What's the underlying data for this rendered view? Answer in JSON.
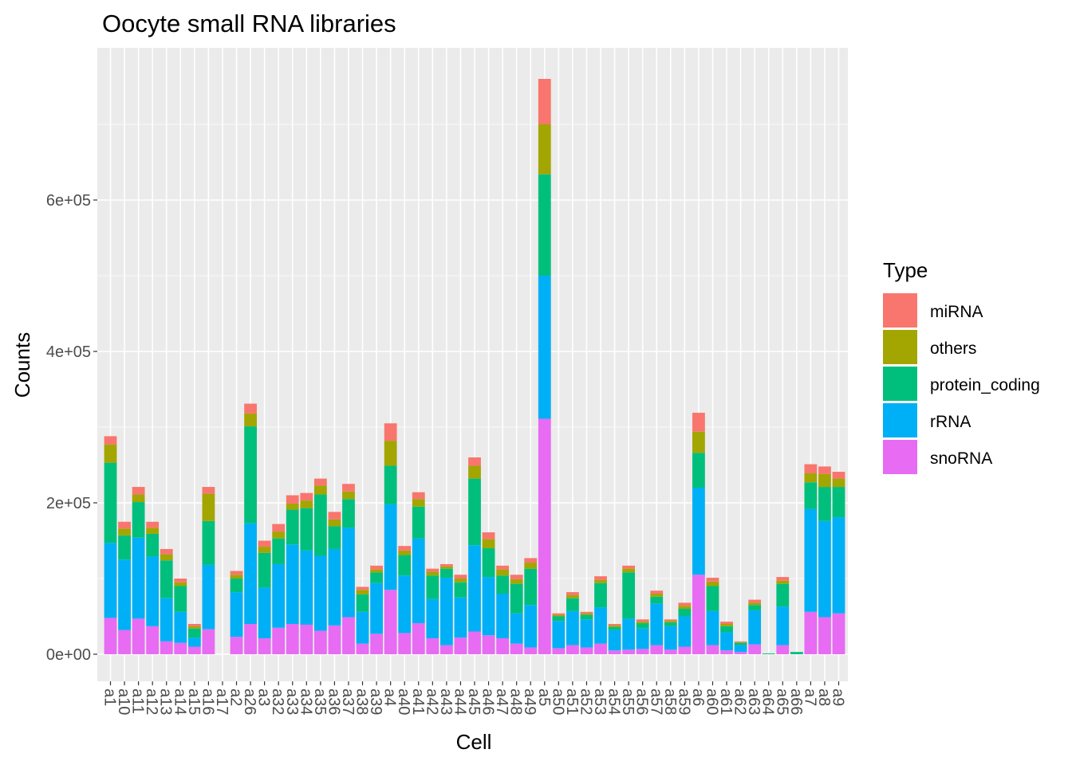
{
  "chart_data": {
    "type": "bar",
    "stacked": true,
    "title": "Oocyte small RNA libraries",
    "xlabel": "Cell",
    "ylabel": "Counts",
    "ylim": [
      0,
      760000
    ],
    "y_ticks": [
      0,
      200000,
      400000,
      600000
    ],
    "y_tick_labels": [
      "0e+00",
      "2e+05",
      "4e+05",
      "6e+05"
    ],
    "legend_title": "Type",
    "legend_position": "right",
    "grid": true,
    "categories": [
      "a1",
      "a10",
      "a11",
      "a12",
      "a13",
      "a14",
      "a15",
      "a16",
      "a17",
      "a2",
      "a26",
      "a3",
      "a32",
      "a33",
      "a34",
      "a35",
      "a36",
      "a37",
      "a38",
      "a39",
      "a4",
      "a40",
      "a41",
      "a42",
      "a43",
      "a44",
      "a45",
      "a46",
      "a47",
      "a48",
      "a49",
      "a5",
      "a50",
      "a51",
      "a52",
      "a53",
      "a54",
      "a55",
      "a56",
      "a57",
      "a58",
      "a59",
      "a6",
      "a60",
      "a61",
      "a62",
      "a63",
      "a64",
      "a65",
      "a66",
      "a7",
      "a8",
      "a9"
    ],
    "series": [
      {
        "name": "snoRNA",
        "color": "#E76BF3",
        "values": [
          48000,
          32000,
          47000,
          37000,
          17000,
          15000,
          10000,
          33000,
          0,
          23000,
          40000,
          21000,
          35000,
          40000,
          39000,
          31000,
          38000,
          49000,
          14000,
          27000,
          85000,
          28000,
          41000,
          21000,
          12000,
          22000,
          30000,
          25000,
          21000,
          14000,
          9000,
          311000,
          8000,
          12000,
          9000,
          14000,
          5000,
          6000,
          7000,
          12000,
          6000,
          10000,
          105000,
          12000,
          5000,
          3000,
          13000,
          0,
          12000,
          0,
          56000,
          49000,
          54000
        ]
      },
      {
        "name": "rRNA",
        "color": "#00B0F6",
        "values": [
          99000,
          93000,
          107000,
          92000,
          57000,
          41000,
          12000,
          85000,
          0,
          59000,
          133000,
          67000,
          84000,
          105000,
          98000,
          99000,
          101000,
          118000,
          42000,
          67000,
          113000,
          76000,
          112000,
          52000,
          89000,
          53000,
          114000,
          77000,
          59000,
          40000,
          56000,
          189000,
          36000,
          45000,
          37000,
          48000,
          27000,
          41000,
          27000,
          55000,
          31000,
          40000,
          115000,
          45000,
          24000,
          9000,
          45000,
          0,
          51000,
          0,
          136000,
          127000,
          127000
        ]
      },
      {
        "name": "protein_coding",
        "color": "#00BF7D",
        "values": [
          106000,
          32000,
          47000,
          30000,
          50000,
          34000,
          12000,
          58000,
          0,
          18000,
          128000,
          46000,
          34000,
          46000,
          56000,
          81000,
          30000,
          38000,
          23000,
          14000,
          51000,
          27000,
          42000,
          31000,
          12000,
          20000,
          88000,
          38000,
          24000,
          39000,
          48000,
          134000,
          6000,
          17000,
          6000,
          32000,
          4000,
          61000,
          7000,
          9000,
          5000,
          10000,
          46000,
          33000,
          8000,
          3000,
          7000,
          1000,
          30000,
          3000,
          35000,
          45000,
          40000
        ]
      },
      {
        "name": "others",
        "color": "#A3A500",
        "values": [
          24000,
          9000,
          10000,
          8000,
          8000,
          5000,
          3000,
          36000,
          0,
          5000,
          17000,
          8000,
          9000,
          8000,
          10000,
          12000,
          9000,
          10000,
          6000,
          4000,
          33000,
          6000,
          10000,
          5000,
          3000,
          5000,
          17000,
          12000,
          8000,
          6000,
          8000,
          66000,
          2000,
          4000,
          2000,
          4000,
          2000,
          5000,
          2000,
          4000,
          2000,
          4000,
          28000,
          6000,
          3000,
          1000,
          3000,
          0,
          4000,
          0,
          12000,
          17000,
          11000
        ]
      },
      {
        "name": "miRNA",
        "color": "#F8766D",
        "values": [
          11000,
          9000,
          10000,
          8000,
          7000,
          5000,
          3000,
          9000,
          0,
          5000,
          13000,
          8000,
          10000,
          11000,
          10000,
          9000,
          10000,
          10000,
          4000,
          5000,
          23000,
          6000,
          9000,
          4000,
          3000,
          5000,
          11000,
          9000,
          5000,
          6000,
          6000,
          60000,
          2000,
          4000,
          2000,
          5000,
          2000,
          4000,
          3000,
          4000,
          2000,
          4000,
          25000,
          5000,
          3000,
          1000,
          4000,
          0,
          5000,
          0,
          12000,
          10000,
          9000
        ]
      }
    ]
  }
}
